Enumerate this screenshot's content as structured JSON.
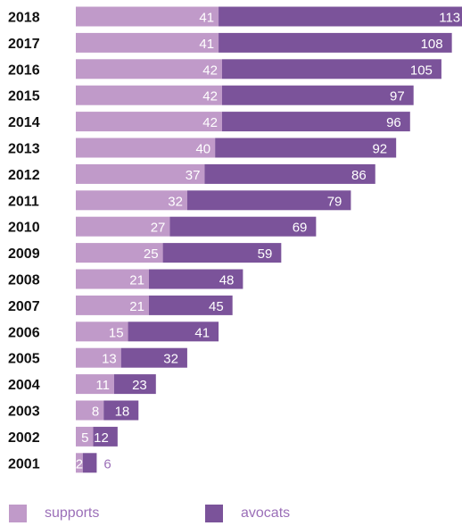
{
  "chart_data": {
    "type": "bar",
    "orientation": "horizontal",
    "stacked": true,
    "categories": [
      "2018",
      "2017",
      "2016",
      "2015",
      "2014",
      "2013",
      "2012",
      "2011",
      "2010",
      "2009",
      "2008",
      "2007",
      "2006",
      "2005",
      "2004",
      "2003",
      "2002",
      "2001"
    ],
    "series": [
      {
        "name": "supports",
        "color": "#c09ac9",
        "values": [
          41,
          41,
          42,
          42,
          42,
          40,
          37,
          32,
          27,
          25,
          21,
          21,
          15,
          13,
          11,
          8,
          5,
          2
        ]
      },
      {
        "name": "avocats",
        "color": "#7b539a",
        "values": [
          113,
          108,
          105,
          97,
          96,
          92,
          86,
          79,
          69,
          59,
          48,
          45,
          41,
          32,
          23,
          18,
          12,
          6
        ]
      }
    ],
    "value_label_color_outside": "#9b6fb8",
    "grid": false,
    "legend_position": "bottom-left"
  }
}
